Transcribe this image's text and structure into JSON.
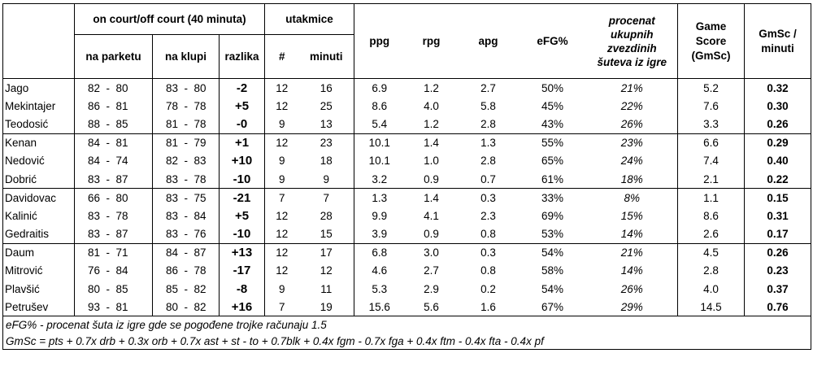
{
  "headers": {
    "oncourt_group": "on court/off court (40 minuta)",
    "utakmice_group": "utakmice",
    "na_parketu": "na parketu",
    "na_klupi": "na klupi",
    "razlika": "razlika",
    "broj": "#",
    "minuti": "minuti",
    "ppg": "ppg",
    "rpg": "rpg",
    "apg": "apg",
    "efg": "eFG%",
    "procenat": "procenat ukupnih zvezdinih šuteva iz igre",
    "gamescore": "Game Score (GmSc)",
    "gmsc_min": "GmSc / minuti"
  },
  "rows": [
    {
      "name": "Jago",
      "on_a": "82",
      "on_b": "80",
      "off_a": "83",
      "off_b": "80",
      "diff": "-2",
      "g": "12",
      "min": "16",
      "ppg": "6.9",
      "rpg": "1.2",
      "apg": "2.7",
      "efg": "50%",
      "pct": "21%",
      "gs": "5.2",
      "gsm": "0.32"
    },
    {
      "name": "Mekintajer",
      "on_a": "86",
      "on_b": "81",
      "off_a": "78",
      "off_b": "78",
      "diff": "+5",
      "g": "12",
      "min": "25",
      "ppg": "8.6",
      "rpg": "4.0",
      "apg": "5.8",
      "efg": "45%",
      "pct": "22%",
      "gs": "7.6",
      "gsm": "0.30"
    },
    {
      "name": "Teodosić",
      "on_a": "88",
      "on_b": "85",
      "off_a": "81",
      "off_b": "78",
      "diff": "-0",
      "g": "9",
      "min": "13",
      "ppg": "5.4",
      "rpg": "1.2",
      "apg": "2.8",
      "efg": "43%",
      "pct": "26%",
      "gs": "3.3",
      "gsm": "0.26"
    },
    {
      "name": "Kenan",
      "on_a": "84",
      "on_b": "81",
      "off_a": "81",
      "off_b": "79",
      "diff": "+1",
      "g": "12",
      "min": "23",
      "ppg": "10.1",
      "rpg": "1.4",
      "apg": "1.3",
      "efg": "55%",
      "pct": "23%",
      "gs": "6.6",
      "gsm": "0.29"
    },
    {
      "name": "Nedović",
      "on_a": "84",
      "on_b": "74",
      "off_a": "82",
      "off_b": "83",
      "diff": "+10",
      "g": "9",
      "min": "18",
      "ppg": "10.1",
      "rpg": "1.0",
      "apg": "2.8",
      "efg": "65%",
      "pct": "24%",
      "gs": "7.4",
      "gsm": "0.40"
    },
    {
      "name": "Dobrić",
      "on_a": "83",
      "on_b": "87",
      "off_a": "83",
      "off_b": "78",
      "diff": "-10",
      "g": "9",
      "min": "9",
      "ppg": "3.2",
      "rpg": "0.9",
      "apg": "0.7",
      "efg": "61%",
      "pct": "18%",
      "gs": "2.1",
      "gsm": "0.22"
    },
    {
      "name": "Davidovac",
      "on_a": "66",
      "on_b": "80",
      "off_a": "83",
      "off_b": "75",
      "diff": "-21",
      "g": "7",
      "min": "7",
      "ppg": "1.3",
      "rpg": "1.4",
      "apg": "0.3",
      "efg": "33%",
      "pct": "8%",
      "gs": "1.1",
      "gsm": "0.15"
    },
    {
      "name": "Kalinić",
      "on_a": "83",
      "on_b": "78",
      "off_a": "83",
      "off_b": "84",
      "diff": "+5",
      "g": "12",
      "min": "28",
      "ppg": "9.9",
      "rpg": "4.1",
      "apg": "2.3",
      "efg": "69%",
      "pct": "15%",
      "gs": "8.6",
      "gsm": "0.31"
    },
    {
      "name": "Gedraitis",
      "on_a": "83",
      "on_b": "87",
      "off_a": "83",
      "off_b": "76",
      "diff": "-10",
      "g": "12",
      "min": "15",
      "ppg": "3.9",
      "rpg": "0.9",
      "apg": "0.8",
      "efg": "53%",
      "pct": "14%",
      "gs": "2.6",
      "gsm": "0.17"
    },
    {
      "name": "Daum",
      "on_a": "81",
      "on_b": "71",
      "off_a": "84",
      "off_b": "87",
      "diff": "+13",
      "g": "12",
      "min": "17",
      "ppg": "6.8",
      "rpg": "3.0",
      "apg": "0.3",
      "efg": "54%",
      "pct": "21%",
      "gs": "4.5",
      "gsm": "0.26"
    },
    {
      "name": "Mitrović",
      "on_a": "76",
      "on_b": "84",
      "off_a": "86",
      "off_b": "78",
      "diff": "-17",
      "g": "12",
      "min": "12",
      "ppg": "4.6",
      "rpg": "2.7",
      "apg": "0.8",
      "efg": "58%",
      "pct": "14%",
      "gs": "2.8",
      "gsm": "0.23"
    },
    {
      "name": "Plavšić",
      "on_a": "80",
      "on_b": "85",
      "off_a": "85",
      "off_b": "82",
      "diff": "-8",
      "g": "9",
      "min": "11",
      "ppg": "5.3",
      "rpg": "2.9",
      "apg": "0.2",
      "efg": "54%",
      "pct": "26%",
      "gs": "4.0",
      "gsm": "0.37"
    },
    {
      "name": "Petrušev",
      "on_a": "93",
      "on_b": "81",
      "off_a": "80",
      "off_b": "82",
      "diff": "+16",
      "g": "7",
      "min": "19",
      "ppg": "15.6",
      "rpg": "5.6",
      "apg": "1.6",
      "efg": "67%",
      "pct": "29%",
      "gs": "14.5",
      "gsm": "0.76"
    }
  ],
  "notes": {
    "efg": "eFG% - procenat šuta iz igre gde se pogođene trojke računaju 1.5",
    "gmsc": "GmSc = pts + 0.7x drb + 0.3x orb + 0.7x ast + st - to + 0.7blk + 0.4x fgm - 0.7x fga + 0.4x ftm - 0.4x fta - 0.4x pf"
  }
}
